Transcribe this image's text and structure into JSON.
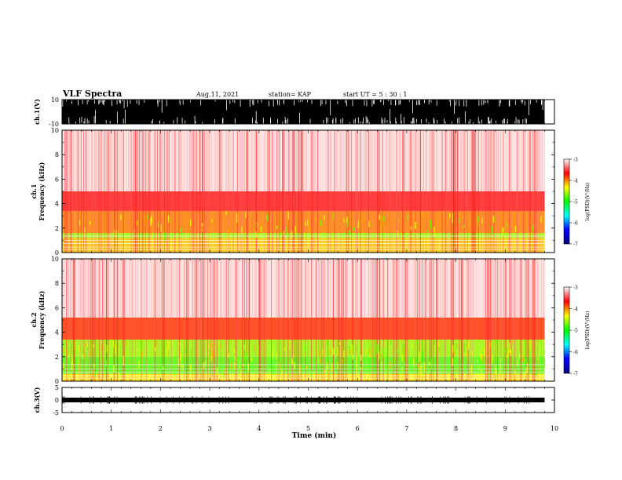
{
  "header": {
    "title": "VLF Spectra",
    "date": "Aug.11, 2021",
    "station": "station= KAP",
    "start": "start  UT =   5 : 30 : 1"
  },
  "chart_data": [
    {
      "type": "line",
      "name": "waveform ch.1",
      "ylabel": "ch.1(V)",
      "ylim": [
        -10,
        10
      ],
      "yticks": [
        "10",
        "-10"
      ],
      "xlim": [
        0,
        9.8
      ],
      "description_level": "dense black waveform saturating near +/-10 V with sparse white gaps"
    },
    {
      "type": "heatmap",
      "name": "spectrogram ch.1",
      "ylabel_channel": "ch.1",
      "ylabel": "Frequency (kHz)",
      "ylim": [
        0,
        10
      ],
      "yticks": [
        "0",
        "2",
        "4",
        "6",
        "8",
        "10"
      ],
      "xlim": [
        0,
        9.8
      ],
      "bands": [
        {
          "f_lo": 0.0,
          "f_hi": 1.2,
          "level": -4.2
        },
        {
          "f_lo": 1.2,
          "f_hi": 1.6,
          "level": -4.6
        },
        {
          "f_lo": 1.6,
          "f_hi": 3.4,
          "level": -4.0
        },
        {
          "f_lo": 3.4,
          "f_hi": 5.0,
          "level": -3.6
        },
        {
          "f_lo": 5.0,
          "f_hi": 10.0,
          "level": -3.3
        }
      ]
    },
    {
      "type": "heatmap",
      "name": "spectrogram ch.2",
      "ylabel_channel": "ch.2",
      "ylabel": "Frequency (kHz)",
      "ylim": [
        0,
        10
      ],
      "yticks": [
        "0",
        "2",
        "4",
        "6",
        "8",
        "10"
      ],
      "xlim": [
        0,
        9.8
      ],
      "bands": [
        {
          "f_lo": 0.0,
          "f_hi": 0.6,
          "level": -4.3
        },
        {
          "f_lo": 0.6,
          "f_hi": 2.0,
          "level": -4.8
        },
        {
          "f_lo": 2.0,
          "f_hi": 3.4,
          "level": -4.6
        },
        {
          "f_lo": 3.4,
          "f_hi": 5.2,
          "level": -3.8
        },
        {
          "f_lo": 5.2,
          "f_hi": 10.0,
          "level": -3.3
        }
      ]
    },
    {
      "type": "line",
      "name": "waveform ch.3",
      "ylabel": "ch.3(V)",
      "ylim": [
        -5,
        5
      ],
      "yticks": [
        "5",
        "0",
        "-5"
      ],
      "xlim": [
        0,
        9.8
      ],
      "baseline_v": 0
    }
  ],
  "colorbar": {
    "label": "log(PSD)(V²/Hz)",
    "range": [
      -7,
      -3
    ],
    "ticks": [
      "-3",
      "-4",
      "-5",
      "-6",
      "-7"
    ],
    "stops": [
      "#000080",
      "#0000ff",
      "#00ffff",
      "#00ff00",
      "#ffff00",
      "#ff0000",
      "#ffffff"
    ]
  },
  "xaxis": {
    "label": "Time (min)",
    "range": [
      0,
      10
    ],
    "ticks": [
      "0",
      "1",
      "2",
      "3",
      "4",
      "5",
      "6",
      "7",
      "8",
      "9",
      "10"
    ]
  }
}
